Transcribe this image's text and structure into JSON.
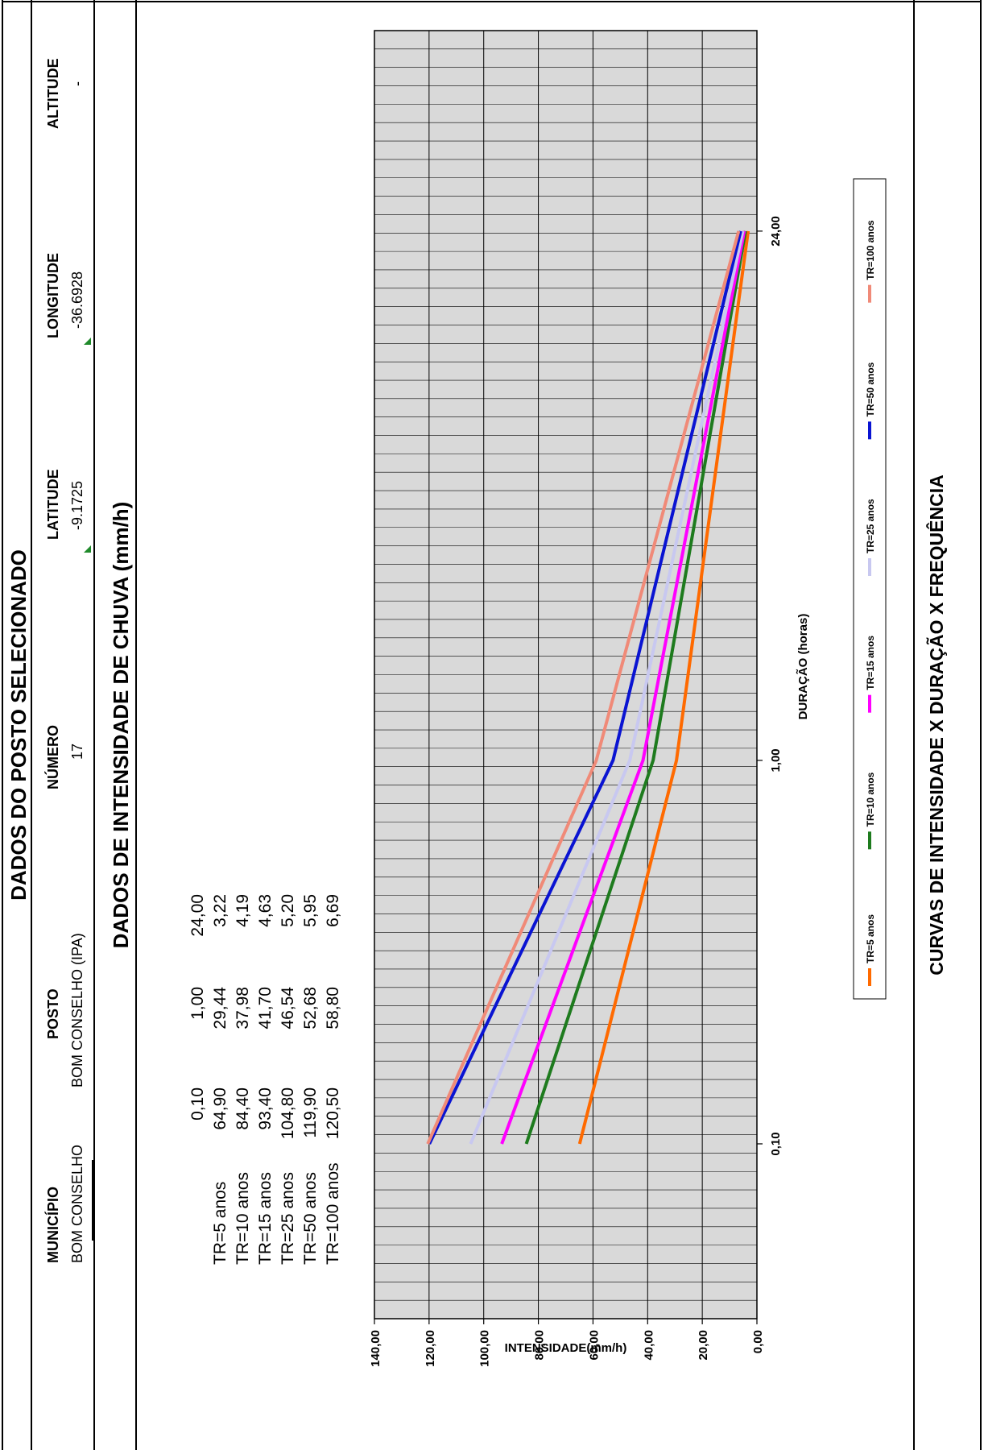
{
  "header": {
    "title": "DADOS DO POSTO SELECIONADO"
  },
  "station": {
    "fields": [
      {
        "label": "MUNICÍPIO",
        "value": "BOM CONSELHO"
      },
      {
        "label": "POSTO",
        "value": "BOM CONSELHO (IPA)"
      },
      {
        "label": "NÚMERO",
        "value": "17"
      },
      {
        "label": "LATITUDE",
        "value": "-9.1725"
      },
      {
        "label": "LONGITUDE",
        "value": "-36.6928"
      },
      {
        "label": "ALTITUDE",
        "value": "-"
      }
    ]
  },
  "intensity_section": {
    "title": "DADOS DE INTENSIDADE DE CHUVA (mm/h)",
    "durations": [
      "0,10",
      "1,00",
      "24,00"
    ],
    "rows": [
      {
        "label": "TR=5 anos",
        "values": [
          "64,90",
          "29,44",
          "3,22"
        ]
      },
      {
        "label": "TR=10 anos",
        "values": [
          "84,40",
          "37,98",
          "4,19"
        ]
      },
      {
        "label": "TR=15 anos",
        "values": [
          "93,40",
          "41,70",
          "4,63"
        ]
      },
      {
        "label": "TR=25 anos",
        "values": [
          "104,80",
          "46,54",
          "5,20"
        ]
      },
      {
        "label": "TR=50 anos",
        "values": [
          "119,90",
          "52,68",
          "5,95"
        ]
      },
      {
        "label": "TR=100 anos",
        "values": [
          "120,50",
          "58,80",
          "6,69"
        ]
      }
    ]
  },
  "chart_title": "CURVAS DE INTENSIDADE X DURAÇÃO X FREQUÊNCIA",
  "chart_data": {
    "type": "line",
    "title": "CURVAS DE INTENSIDADE X DURAÇÃO X FREQUÊNCIA",
    "xlabel": "DURAÇÃO  (horas)",
    "ylabel": "INTENSIDADE(mm/h)",
    "x_scale": "log",
    "x_ticks": [
      0.1,
      1,
      24
    ],
    "x_tick_labels": [
      "0,10",
      "1,00",
      "24,00"
    ],
    "ylim": [
      0,
      140
    ],
    "y_ticks": [
      0,
      20,
      40,
      60,
      80,
      100,
      120,
      140
    ],
    "y_tick_labels": [
      "0,00",
      "20,00",
      "40,00",
      "60,00",
      "80,00",
      "100,00",
      "120,00",
      "140,00"
    ],
    "x": [
      0.1,
      1,
      24
    ],
    "grid": true,
    "legend_position": "bottom",
    "series": [
      {
        "name": "TR=5 anos",
        "color": "#ff6a00",
        "values": [
          64.9,
          29.44,
          3.22
        ]
      },
      {
        "name": "TR=10 anos",
        "color": "#1e7b1e",
        "values": [
          84.4,
          37.98,
          4.19
        ]
      },
      {
        "name": "TR=15 anos",
        "color": "#ff00ff",
        "values": [
          93.4,
          41.7,
          4.63
        ]
      },
      {
        "name": "TR=25 anos",
        "color": "#c8c8f0",
        "values": [
          104.8,
          46.54,
          5.2
        ]
      },
      {
        "name": "TR=50 anos",
        "color": "#0a14d2",
        "values": [
          119.9,
          52.68,
          5.95
        ]
      },
      {
        "name": "TR=100 anos",
        "color": "#f08a78",
        "values": [
          120.5,
          58.8,
          6.69
        ]
      }
    ],
    "colors": {
      "plot_background": "#d9d9d9"
    }
  }
}
